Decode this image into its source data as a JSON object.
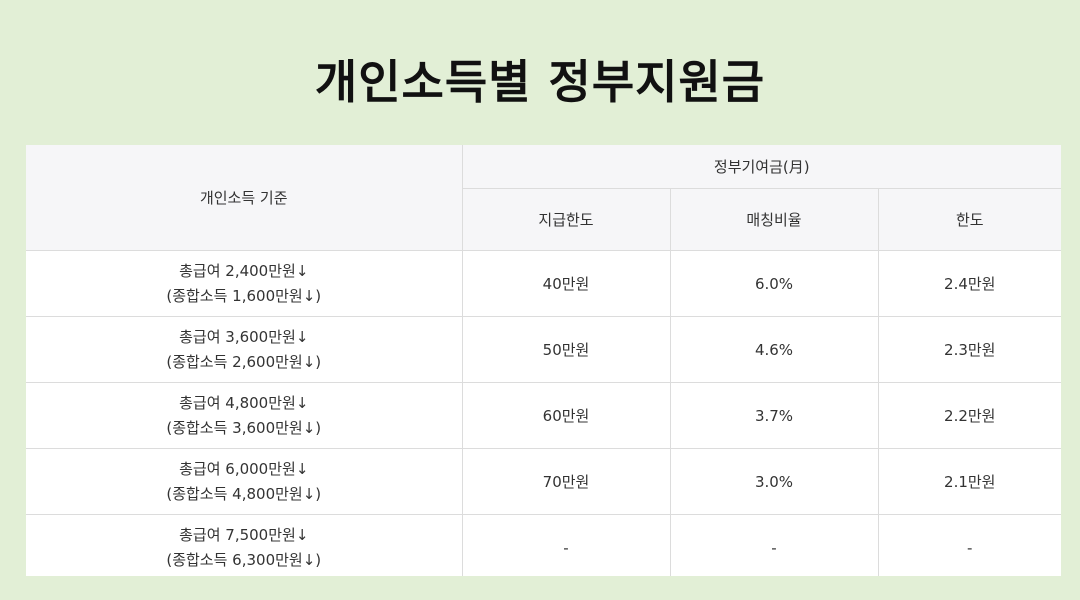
{
  "title": "개인소득별 정부지원금",
  "table": {
    "header": {
      "income_basis": "개인소득 기준",
      "gov_contribution": "정부기여금(月)",
      "sub_columns": [
        "지급한도",
        "매칭비율",
        "한도"
      ]
    },
    "rows": [
      {
        "salary": "총급여 2,400만원↓",
        "combined": "(종합소득 1,600만원↓)",
        "limit": "40만원",
        "ratio": "6.0%",
        "cap": "2.4만원"
      },
      {
        "salary": "총급여 3,600만원↓",
        "combined": "(종합소득 2,600만원↓)",
        "limit": "50만원",
        "ratio": "4.6%",
        "cap": "2.3만원"
      },
      {
        "salary": "총급여 4,800만원↓",
        "combined": "(종합소득 3,600만원↓)",
        "limit": "60만원",
        "ratio": "3.7%",
        "cap": "2.2만원"
      },
      {
        "salary": "총급여 6,000만원↓",
        "combined": "(종합소득 4,800만원↓)",
        "limit": "70만원",
        "ratio": "3.0%",
        "cap": "2.1만원"
      },
      {
        "salary": "총급여 7,500만원↓",
        "combined": "(종합소득 6,300만원↓)",
        "limit": "-",
        "ratio": "-",
        "cap": "-"
      }
    ]
  },
  "colors": {
    "background": "#e2efd6",
    "header_bg": "#f6f6f8",
    "border": "#dcdcdc",
    "text": "#333333",
    "title": "#111111"
  }
}
